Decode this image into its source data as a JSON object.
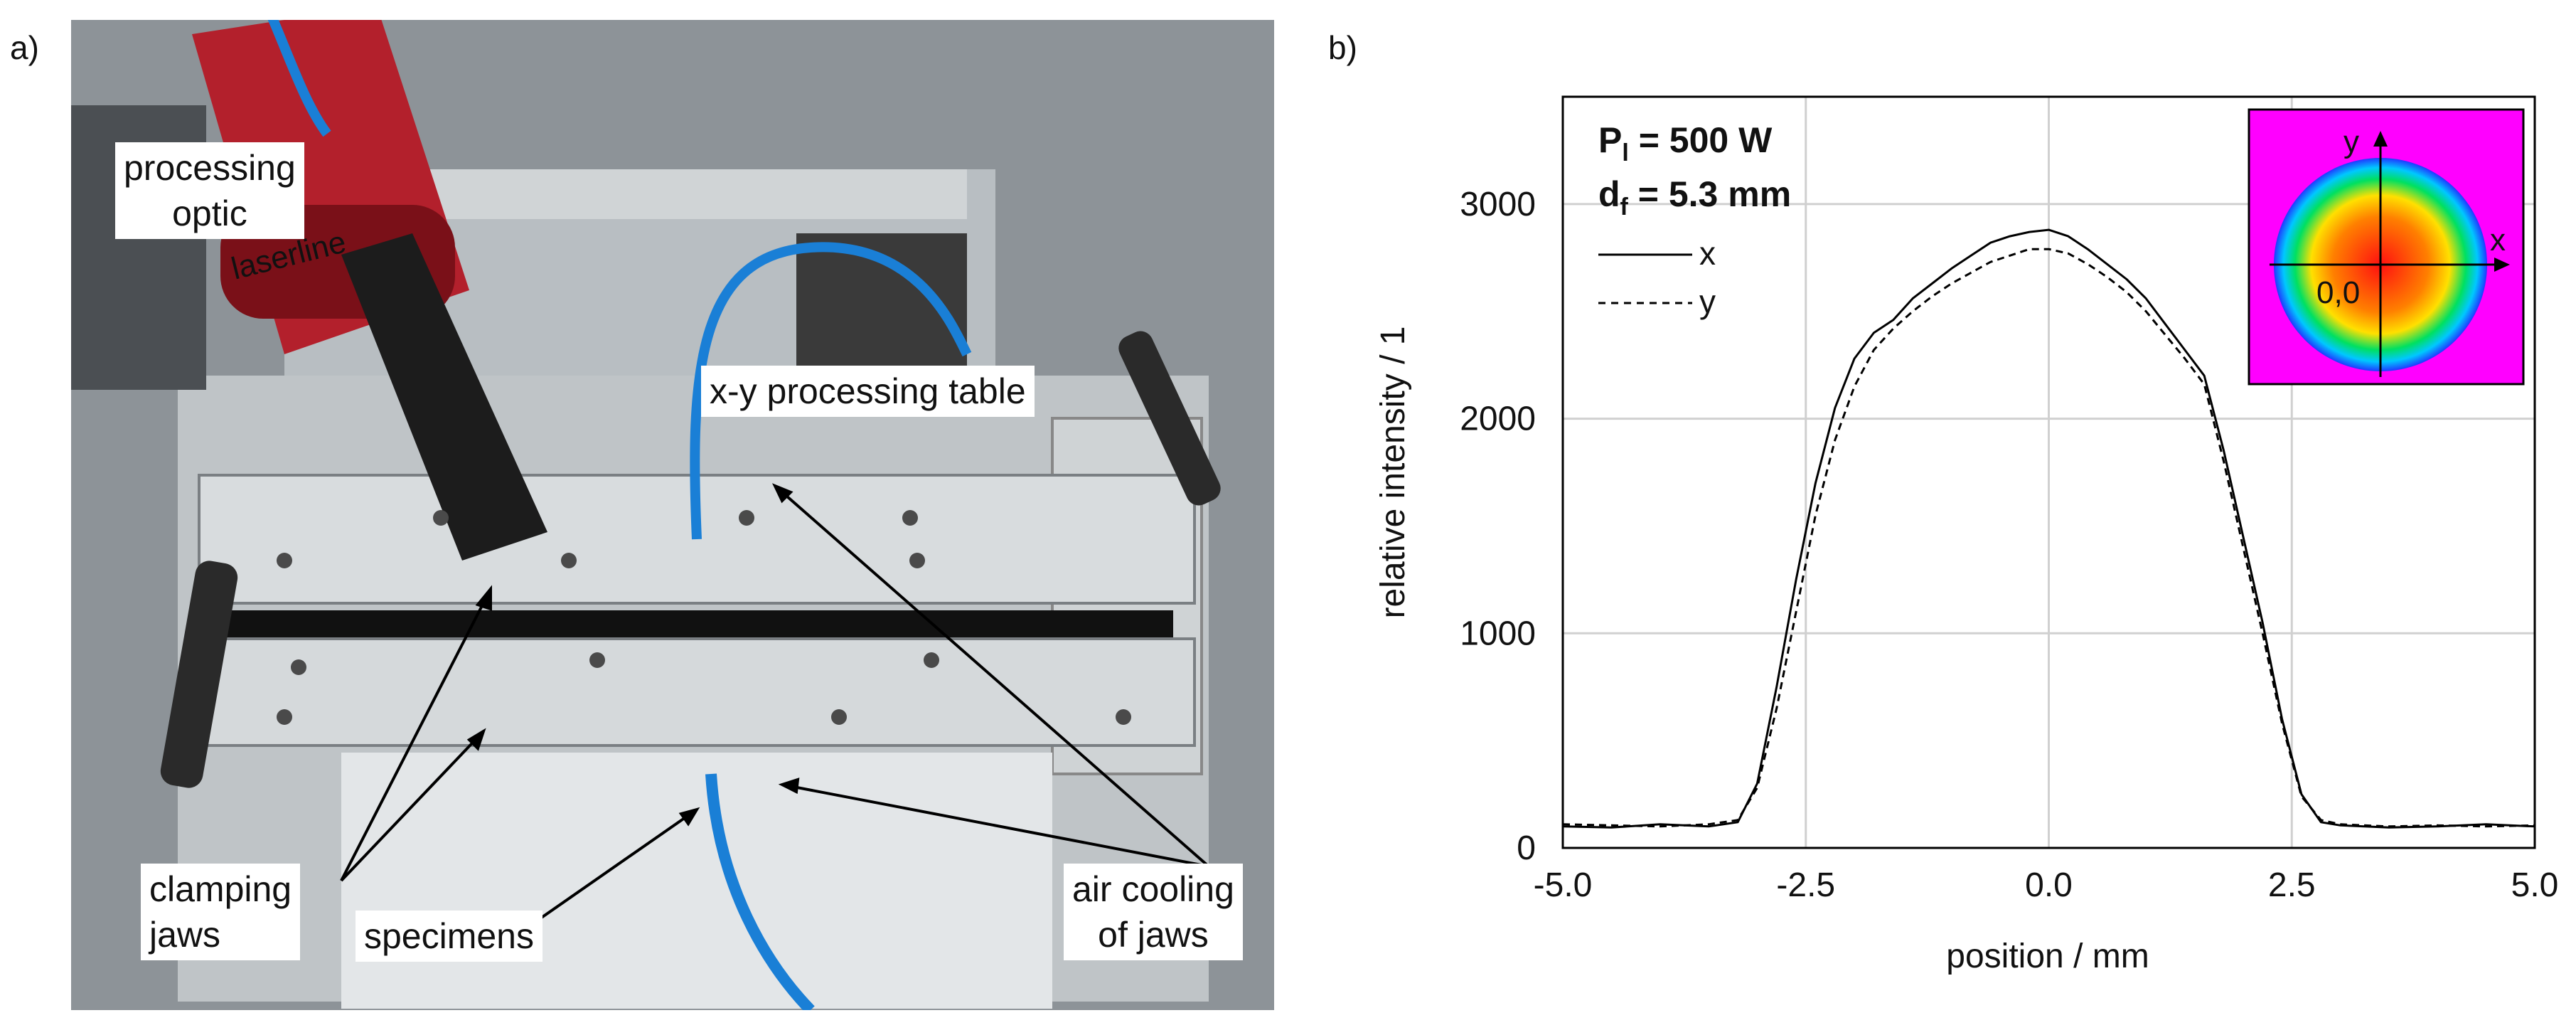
{
  "panel_a": {
    "label": "a)",
    "callouts": {
      "processing_optic": [
        "processing",
        "optic"
      ],
      "xy_table": "x-y processing table",
      "clamping_jaws": [
        "clamping",
        "jaws"
      ],
      "specimens": "specimens",
      "air_cooling": [
        "air cooling",
        "of jaws"
      ]
    },
    "brand_lettering": "laserline",
    "colors": {
      "hose": "#1a7fd6",
      "optic": "#b3202c",
      "aluminum": "#c9ced1"
    }
  },
  "panel_b": {
    "label": "b)"
  },
  "chart_data": {
    "type": "line",
    "xlabel": "position / mm",
    "ylabel": "relative intensity / 1",
    "xlim": [
      -5.0,
      5.0
    ],
    "ylim": [
      0,
      3500
    ],
    "xticks": [
      "-5.0",
      "-2.5",
      "0.0",
      "2.5",
      "5.0"
    ],
    "yticks": [
      "0",
      "1000",
      "2000",
      "3000"
    ],
    "grid": true,
    "annotation_power": {
      "main": "P",
      "sub": "l",
      "rest": " = 500 W"
    },
    "annotation_focus": {
      "main": "d",
      "sub": "f",
      "rest": " = 5.3 mm"
    },
    "legend_position": "top-left",
    "series": [
      {
        "name": "x",
        "style": "solid",
        "x": [
          -5.0,
          -4.5,
          -4.0,
          -3.5,
          -3.2,
          -3.0,
          -2.8,
          -2.6,
          -2.4,
          -2.2,
          -2.0,
          -1.8,
          -1.6,
          -1.4,
          -1.2,
          -1.0,
          -0.8,
          -0.6,
          -0.4,
          -0.2,
          0.0,
          0.2,
          0.4,
          0.6,
          0.8,
          1.0,
          1.2,
          1.4,
          1.6,
          1.8,
          2.0,
          2.2,
          2.4,
          2.6,
          2.8,
          3.0,
          3.5,
          4.0,
          4.5,
          5.0
        ],
        "y": [
          100,
          95,
          110,
          100,
          120,
          300,
          750,
          1250,
          1700,
          2050,
          2280,
          2400,
          2460,
          2560,
          2630,
          2700,
          2760,
          2820,
          2850,
          2870,
          2880,
          2850,
          2790,
          2720,
          2650,
          2560,
          2440,
          2320,
          2200,
          1850,
          1450,
          1050,
          600,
          250,
          120,
          105,
          95,
          100,
          110,
          100
        ]
      },
      {
        "name": "y",
        "style": "dashed",
        "x": [
          -5.0,
          -4.5,
          -4.0,
          -3.5,
          -3.2,
          -3.0,
          -2.8,
          -2.6,
          -2.4,
          -2.2,
          -2.0,
          -1.8,
          -1.6,
          -1.4,
          -1.2,
          -1.0,
          -0.8,
          -0.6,
          -0.4,
          -0.2,
          0.0,
          0.2,
          0.4,
          0.6,
          0.8,
          1.0,
          1.2,
          1.4,
          1.6,
          1.8,
          2.0,
          2.2,
          2.4,
          2.6,
          2.8,
          3.0,
          3.5,
          4.0,
          4.5,
          5.0
        ],
        "y": [
          110,
          105,
          100,
          110,
          130,
          280,
          650,
          1100,
          1550,
          1900,
          2150,
          2320,
          2420,
          2500,
          2570,
          2630,
          2680,
          2730,
          2760,
          2790,
          2790,
          2770,
          2720,
          2660,
          2590,
          2500,
          2390,
          2280,
          2160,
          1800,
          1400,
          1000,
          580,
          240,
          130,
          110,
          100,
          105,
          100,
          105
        ]
      }
    ],
    "inset": {
      "axis_x": "x",
      "axis_y": "y",
      "origin": "0,0",
      "background": "#ff00ff",
      "colors": [
        "#1f3bff",
        "#00c8ff",
        "#00e060",
        "#ffe000",
        "#ff8000",
        "#ff1010"
      ]
    }
  }
}
